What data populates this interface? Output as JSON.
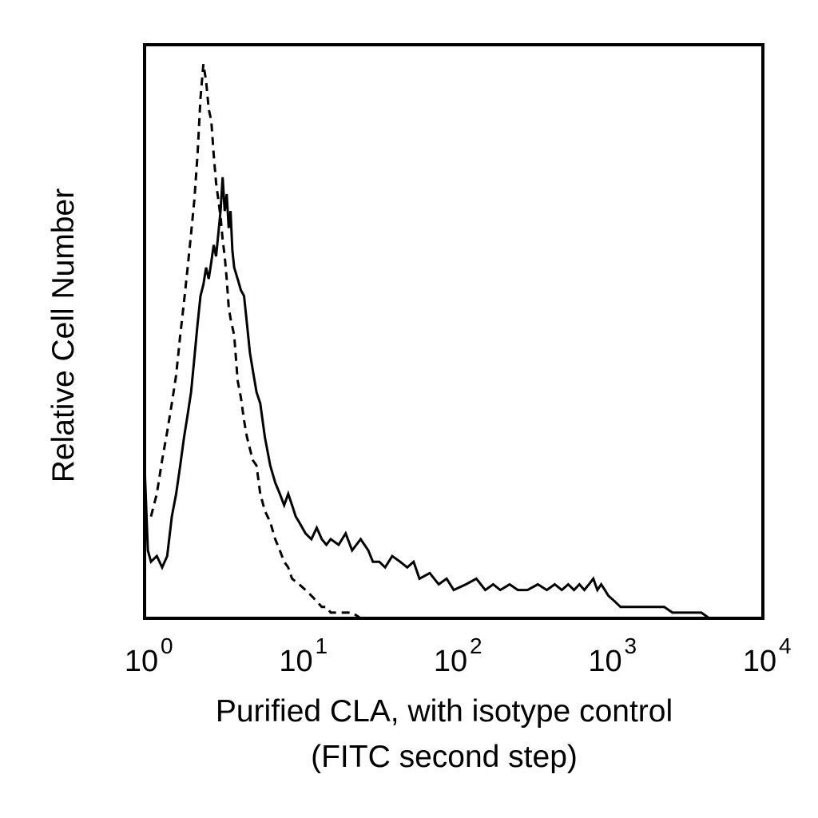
{
  "chart_data": {
    "type": "line",
    "title": "",
    "xlabel_lines": [
      "Purified CLA, with isotype control",
      "(FITC second step)"
    ],
    "ylabel": "Relative Cell Number",
    "x_scale": "log",
    "xlim": [
      1,
      10000
    ],
    "ylim": [
      0,
      1
    ],
    "grid": false,
    "legend": "none",
    "x_ticks": [
      {
        "base": "10",
        "exp": "0",
        "value": 1
      },
      {
        "base": "10",
        "exp": "1",
        "value": 10
      },
      {
        "base": "10",
        "exp": "2",
        "value": 100
      },
      {
        "base": "10",
        "exp": "3",
        "value": 1000
      },
      {
        "base": "10",
        "exp": "4",
        "value": 10000
      }
    ],
    "series": [
      {
        "style": "solid",
        "color": "#000000",
        "x": [
          1,
          1.05,
          1.1,
          1.2,
          1.3,
          1.4,
          1.5,
          1.6,
          1.7,
          1.8,
          1.9,
          2.0,
          2.1,
          2.2,
          2.3,
          2.4,
          2.5,
          2.6,
          2.7,
          2.8,
          2.9,
          3.0,
          3.1,
          3.2,
          3.3,
          3.4,
          3.5,
          3.6,
          3.7,
          3.8,
          4.0,
          4.2,
          4.4,
          4.6,
          4.8,
          5.0,
          5.3,
          5.6,
          6.0,
          6.5,
          7.0,
          7.5,
          8.0,
          8.5,
          9.0,
          9.5,
          10,
          11,
          12,
          13,
          14,
          15,
          16,
          18,
          20,
          22,
          25,
          28,
          30,
          33,
          36,
          40,
          45,
          50,
          55,
          60,
          70,
          80,
          90,
          100,
          120,
          140,
          160,
          180,
          200,
          230,
          260,
          300,
          350,
          400,
          450,
          500,
          550,
          600,
          650,
          700,
          750,
          800,
          850,
          900,
          950,
          1000,
          1100,
          1200,
          1400,
          1600,
          1800,
          2000,
          2300,
          2600,
          3000,
          3500,
          4000,
          4500
        ],
        "values": [
          0.27,
          0.12,
          0.1,
          0.11,
          0.09,
          0.11,
          0.18,
          0.22,
          0.27,
          0.32,
          0.36,
          0.4,
          0.46,
          0.52,
          0.57,
          0.59,
          0.62,
          0.6,
          0.63,
          0.66,
          0.64,
          0.68,
          0.72,
          0.78,
          0.72,
          0.75,
          0.69,
          0.72,
          0.65,
          0.62,
          0.6,
          0.58,
          0.57,
          0.52,
          0.47,
          0.44,
          0.4,
          0.38,
          0.32,
          0.27,
          0.24,
          0.22,
          0.2,
          0.22,
          0.2,
          0.18,
          0.17,
          0.15,
          0.14,
          0.16,
          0.14,
          0.13,
          0.14,
          0.13,
          0.15,
          0.12,
          0.14,
          0.12,
          0.1,
          0.1,
          0.09,
          0.11,
          0.1,
          0.09,
          0.1,
          0.07,
          0.08,
          0.06,
          0.07,
          0.05,
          0.06,
          0.07,
          0.05,
          0.06,
          0.05,
          0.06,
          0.05,
          0.05,
          0.06,
          0.05,
          0.06,
          0.05,
          0.06,
          0.05,
          0.06,
          0.05,
          0.06,
          0.07,
          0.05,
          0.06,
          0.05,
          0.04,
          0.03,
          0.02,
          0.02,
          0.02,
          0.02,
          0.02,
          0.02,
          0.01,
          0.01,
          0.01,
          0.01,
          0.0
        ]
      },
      {
        "style": "dashed",
        "color": "#000000",
        "x": [
          1.1,
          1.2,
          1.3,
          1.4,
          1.5,
          1.6,
          1.7,
          1.8,
          1.9,
          2.0,
          2.1,
          2.2,
          2.3,
          2.4,
          2.5,
          2.6,
          2.7,
          2.8,
          2.9,
          3.0,
          3.1,
          3.2,
          3.3,
          3.4,
          3.5,
          3.6,
          3.8,
          4.0,
          4.2,
          4.4,
          4.6,
          4.8,
          5.0,
          5.3,
          5.6,
          6.0,
          6.5,
          7.0,
          7.5,
          8.0,
          8.5,
          9.0,
          10,
          11,
          12,
          13,
          14,
          15,
          16,
          18,
          20,
          22,
          25,
          30,
          35,
          40,
          50,
          60,
          80,
          100,
          150,
          200,
          300,
          500,
          700,
          1000
        ],
        "values": [
          0.18,
          0.22,
          0.28,
          0.33,
          0.38,
          0.43,
          0.5,
          0.56,
          0.62,
          0.68,
          0.74,
          0.82,
          0.92,
          0.98,
          0.95,
          0.9,
          0.88,
          0.82,
          0.77,
          0.74,
          0.71,
          0.67,
          0.64,
          0.6,
          0.55,
          0.53,
          0.5,
          0.42,
          0.39,
          0.35,
          0.32,
          0.3,
          0.28,
          0.27,
          0.22,
          0.19,
          0.17,
          0.14,
          0.12,
          0.1,
          0.09,
          0.07,
          0.06,
          0.05,
          0.04,
          0.03,
          0.02,
          0.02,
          0.01,
          0.01,
          0.01,
          0.01,
          0.0,
          0.0,
          0.0,
          0.0,
          0.0,
          0.0,
          0.0,
          0.0,
          0.0,
          0.0,
          0.0,
          0.0,
          0.0,
          0.0
        ]
      }
    ]
  }
}
